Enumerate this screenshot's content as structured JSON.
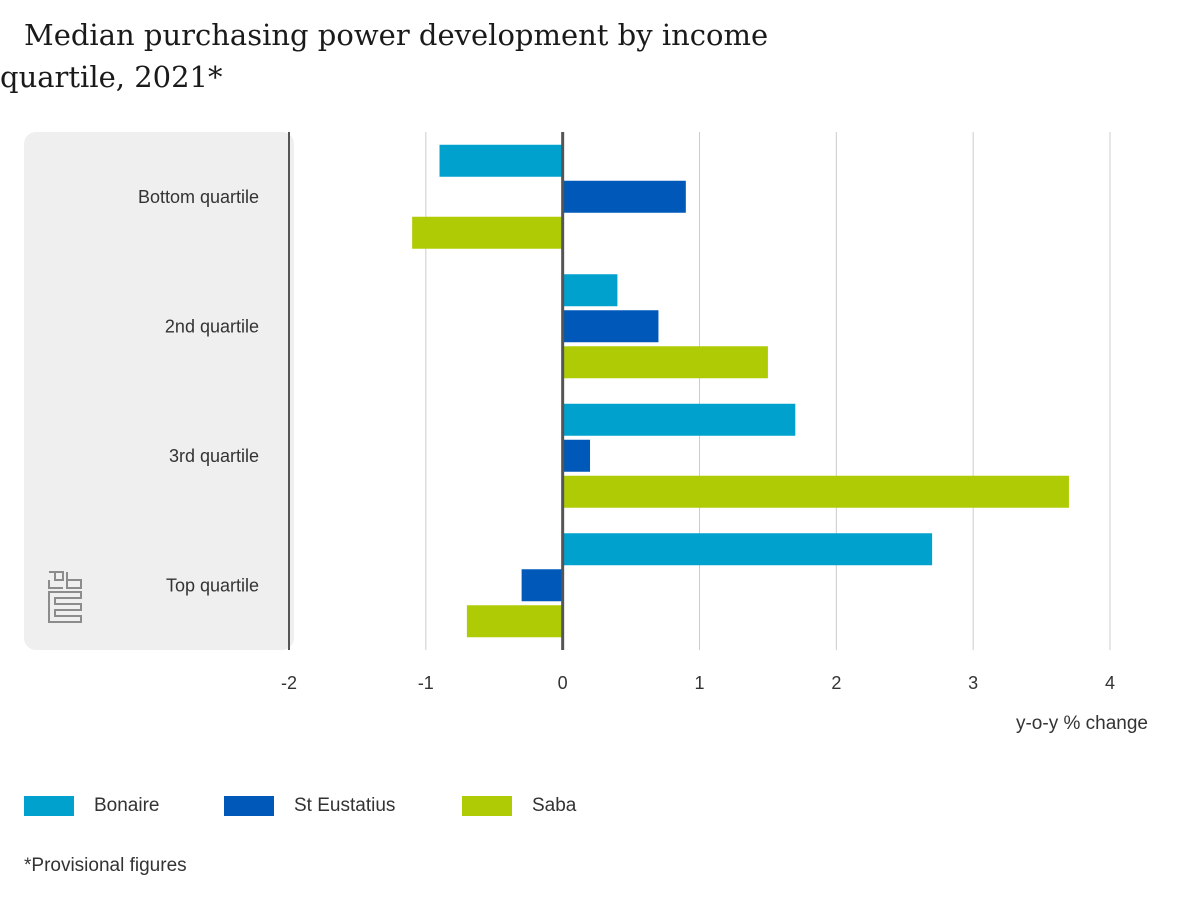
{
  "title": "Median purchasing power development by income quartile, 2021*",
  "footnote": "*Provisional figures",
  "colors": {
    "bonaire": "#00a1cd",
    "st_eustatius": "#0058b8",
    "saba": "#afcb05",
    "panel_bg": "#efefef",
    "grid": "#cccccc",
    "axis": "#555555"
  },
  "chart_data": {
    "type": "bar",
    "orientation": "horizontal",
    "categories": [
      "Bottom quartile",
      "2nd quartile",
      "3rd quartile",
      "Top quartile"
    ],
    "series": [
      {
        "name": "Bonaire",
        "values": [
          -0.9,
          0.4,
          1.7,
          2.7
        ]
      },
      {
        "name": "St Eustatius",
        "values": [
          0.9,
          0.7,
          0.2,
          -0.3
        ]
      },
      {
        "name": "Saba",
        "values": [
          -1.1,
          1.5,
          3.7,
          -0.7
        ]
      }
    ],
    "xlabel": "y-o-y % change",
    "xlim": [
      -2,
      4
    ],
    "xticks": [
      -2,
      -1,
      0,
      1,
      2,
      3,
      4
    ],
    "grid": "vertical",
    "legend": "bottom-left"
  }
}
